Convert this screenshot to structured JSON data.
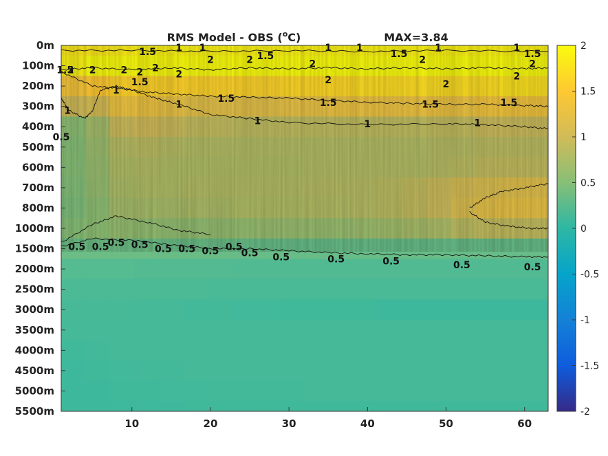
{
  "chart_data": {
    "type": "heatmap",
    "title": "RMS Model - OBS (",
    "title_unit_sup": "o",
    "title_unit_end": "C)",
    "max_label": "MAX=3.84",
    "colormap": "parula",
    "clim": [
      -2,
      2
    ],
    "xlim": [
      1,
      63
    ],
    "x_ticks": [
      10,
      20,
      30,
      40,
      50,
      60
    ],
    "y_ticks": [
      "0m",
      "100m",
      "200m",
      "300m",
      "400m",
      "500m",
      "600m",
      "700m",
      "800m",
      "1000m",
      "1500m",
      "2000m",
      "2500m",
      "3000m",
      "3500m",
      "4000m",
      "4500m",
      "5000m",
      "5500m"
    ],
    "colorbar_ticks": [
      2,
      1.5,
      1,
      0.5,
      0,
      -0.5,
      -1,
      -1.5,
      -2
    ],
    "depth_rows": [
      {
        "level": "0m",
        "values": [
          1.8,
          1.8,
          1.85,
          1.9,
          1.9,
          1.9,
          1.9,
          1.9,
          1.9,
          1.9,
          1.9,
          1.9,
          1.9,
          1.9,
          1.9,
          1.9,
          1.9,
          1.9,
          1.9,
          1.9
        ]
      },
      {
        "level": "100m",
        "values": [
          1.9,
          2.0,
          2.0,
          2.0,
          2.0,
          2.0,
          2.0,
          2.0,
          2.0,
          2.0,
          2.0,
          2.0,
          2.0,
          2.0,
          2.0,
          2.0,
          2.0,
          2.0,
          2.0,
          2.0
        ]
      },
      {
        "level": "200m",
        "values": [
          1.4,
          1.5,
          1.6,
          1.6,
          1.6,
          1.6,
          1.6,
          1.6,
          1.6,
          1.65,
          1.65,
          1.65,
          1.7,
          1.7,
          1.7,
          1.7,
          1.7,
          1.7,
          1.75,
          1.75
        ]
      },
      {
        "level": "300m",
        "values": [
          1.0,
          1.05,
          1.3,
          1.3,
          1.25,
          1.2,
          1.2,
          1.2,
          1.2,
          1.25,
          1.25,
          1.3,
          1.3,
          1.3,
          1.3,
          1.3,
          1.3,
          1.35,
          1.35,
          1.35
        ]
      },
      {
        "level": "400m",
        "values": [
          0.55,
          0.7,
          0.95,
          1.0,
          0.95,
          0.9,
          0.9,
          0.88,
          0.88,
          0.88,
          0.88,
          0.88,
          0.88,
          0.88,
          0.88,
          0.9,
          0.9,
          0.95,
          0.95,
          0.95
        ]
      },
      {
        "level": "500m",
        "values": [
          0.5,
          0.65,
          0.82,
          0.85,
          0.82,
          0.8,
          0.8,
          0.8,
          0.8,
          0.8,
          0.8,
          0.8,
          0.8,
          0.8,
          0.8,
          0.82,
          0.82,
          0.85,
          0.85,
          0.85
        ]
      },
      {
        "level": "600m",
        "values": [
          0.5,
          0.62,
          0.78,
          0.8,
          0.78,
          0.78,
          0.78,
          0.78,
          0.78,
          0.78,
          0.8,
          0.8,
          0.8,
          0.8,
          0.8,
          0.82,
          0.85,
          0.9,
          0.9,
          0.9
        ]
      },
      {
        "level": "700m",
        "values": [
          0.48,
          0.6,
          0.75,
          0.78,
          0.78,
          0.8,
          0.8,
          0.8,
          0.8,
          0.8,
          0.82,
          0.82,
          0.82,
          0.85,
          0.9,
          0.95,
          1.05,
          1.1,
          1.15,
          1.15
        ]
      },
      {
        "level": "800m",
        "values": [
          0.45,
          0.55,
          0.7,
          0.72,
          0.72,
          0.75,
          0.75,
          0.78,
          0.78,
          0.78,
          0.8,
          0.8,
          0.82,
          0.85,
          0.9,
          0.95,
          1.1,
          1.2,
          1.25,
          1.25
        ]
      },
      {
        "level": "1000m",
        "values": [
          0.5,
          0.55,
          0.6,
          0.58,
          0.58,
          0.58,
          0.6,
          0.6,
          0.62,
          0.62,
          0.62,
          0.62,
          0.65,
          0.68,
          0.72,
          0.75,
          0.85,
          0.9,
          0.9,
          0.9
        ]
      },
      {
        "level": "1500m",
        "values": [
          0.35,
          0.35,
          0.35,
          0.35,
          0.33,
          0.33,
          0.33,
          0.32,
          0.32,
          0.32,
          0.32,
          0.32,
          0.32,
          0.32,
          0.32,
          0.32,
          0.32,
          0.32,
          0.32,
          0.32
        ]
      },
      {
        "level": "2000m",
        "values": [
          0.22,
          0.22,
          0.22,
          0.21,
          0.21,
          0.21,
          0.21,
          0.2,
          0.2,
          0.2,
          0.2,
          0.2,
          0.2,
          0.2,
          0.2,
          0.2,
          0.2,
          0.2,
          0.2,
          0.2
        ]
      },
      {
        "level": "2500m",
        "values": [
          0.17,
          0.17,
          0.17,
          0.17,
          0.17,
          0.17,
          0.16,
          0.16,
          0.16,
          0.16,
          0.16,
          0.16,
          0.16,
          0.16,
          0.16,
          0.16,
          0.16,
          0.16,
          0.16,
          0.16
        ]
      },
      {
        "level": "3000m",
        "values": [
          0.14,
          0.14,
          0.14,
          0.13,
          0.13,
          0.12,
          0.12,
          0.11,
          0.11,
          0.1,
          0.1,
          0.1,
          0.1,
          0.09,
          0.09,
          0.09,
          0.09,
          0.09,
          0.09,
          0.09
        ]
      },
      {
        "level": "3500m",
        "values": [
          0.13,
          0.13,
          0.13,
          0.13,
          0.13,
          0.13,
          0.13,
          0.13,
          0.13,
          0.13,
          0.13,
          0.13,
          0.13,
          0.13,
          0.13,
          0.13,
          0.13,
          0.13,
          0.13,
          0.13
        ]
      },
      {
        "level": "4000m",
        "values": [
          0.1,
          0.12,
          0.13,
          0.13,
          0.13,
          0.13,
          0.13,
          0.13,
          0.13,
          0.13,
          0.13,
          0.13,
          0.13,
          0.13,
          0.13,
          0.13,
          0.13,
          0.13,
          0.13,
          0.13
        ]
      },
      {
        "level": "4500m",
        "values": [
          0.09,
          0.1,
          0.11,
          0.12,
          0.12,
          0.13,
          0.13,
          0.13,
          0.13,
          0.13,
          0.13,
          0.13,
          0.13,
          0.13,
          0.13,
          0.13,
          0.13,
          0.13,
          0.13,
          0.13
        ]
      },
      {
        "level": "5000m",
        "values": [
          0.09,
          0.09,
          0.1,
          0.1,
          0.11,
          0.11,
          0.12,
          0.12,
          0.12,
          0.12,
          0.13,
          0.13,
          0.13,
          0.13,
          0.13,
          0.13,
          0.13,
          0.13,
          0.13,
          0.13
        ]
      },
      {
        "level": "5500m",
        "values": [
          0.09,
          0.09,
          0.09,
          0.09,
          0.09,
          0.1,
          0.1,
          0.1,
          0.1,
          0.1,
          0.1,
          0.1,
          0.1,
          0.1,
          0.1,
          0.1,
          0.1,
          0.1,
          0.1,
          0.1
        ]
      }
    ],
    "contours": [
      {
        "level": "2",
        "line": [
          [
            1,
            1.2
          ],
          [
            5,
            1.1
          ],
          [
            10,
            1.2
          ],
          [
            15,
            1.1
          ],
          [
            20,
            1.2
          ],
          [
            25,
            1.1
          ],
          [
            30,
            1.15
          ],
          [
            35,
            1.1
          ],
          [
            40,
            1.15
          ],
          [
            45,
            1.1
          ],
          [
            50,
            1.15
          ],
          [
            55,
            1.1
          ],
          [
            60,
            1.15
          ],
          [
            63,
            1.1
          ]
        ]
      },
      {
        "level": "1.5",
        "line": [
          [
            1,
            0.25
          ],
          [
            10,
            0.25
          ],
          [
            20,
            0.3
          ],
          [
            30,
            0.25
          ],
          [
            40,
            0.3
          ],
          [
            50,
            0.25
          ],
          [
            63,
            0.3
          ]
        ]
      },
      {
        "level": "1.5",
        "line": [
          [
            1,
            1.3
          ],
          [
            5,
            2.0
          ],
          [
            8,
            2.1
          ],
          [
            12,
            2.3
          ],
          [
            16,
            2.4
          ],
          [
            20,
            2.5
          ],
          [
            25,
            2.55
          ],
          [
            30,
            2.6
          ],
          [
            35,
            2.7
          ],
          [
            40,
            2.8
          ],
          [
            45,
            2.85
          ],
          [
            50,
            2.9
          ],
          [
            55,
            2.9
          ],
          [
            60,
            2.95
          ],
          [
            63,
            3.0
          ]
        ]
      },
      {
        "level": "1",
        "line": [
          [
            1,
            2.6
          ],
          [
            2,
            3.2
          ],
          [
            4,
            3.6
          ],
          [
            5,
            3.2
          ],
          [
            6,
            2.2
          ],
          [
            8,
            2.0
          ],
          [
            10,
            2.2
          ],
          [
            13,
            2.6
          ],
          [
            16,
            2.9
          ],
          [
            20,
            3.4
          ],
          [
            25,
            3.6
          ],
          [
            30,
            3.8
          ],
          [
            40,
            3.9
          ],
          [
            50,
            3.85
          ],
          [
            55,
            3.9
          ],
          [
            60,
            4.0
          ],
          [
            63,
            4.1
          ]
        ]
      },
      {
        "level": "0.5",
        "line": [
          [
            1,
            9.9
          ],
          [
            5,
            9.5
          ],
          [
            10,
            9.6
          ],
          [
            15,
            9.8
          ],
          [
            20,
            10.0
          ],
          [
            25,
            10.0
          ],
          [
            30,
            10.1
          ],
          [
            35,
            10.2
          ],
          [
            40,
            10.25
          ],
          [
            45,
            10.3
          ],
          [
            50,
            10.3
          ],
          [
            55,
            10.35
          ],
          [
            60,
            10.4
          ],
          [
            63,
            10.4
          ]
        ]
      },
      {
        "level": "0.5",
        "line": [
          [
            1,
            9.7
          ],
          [
            5,
            8.8
          ],
          [
            8,
            8.4
          ],
          [
            12,
            8.7
          ],
          [
            16,
            9.1
          ],
          [
            20,
            9.3
          ]
        ]
      },
      {
        "level": "1",
        "line": [
          [
            53,
            8.0
          ],
          [
            55,
            7.5
          ],
          [
            57,
            7.2
          ],
          [
            60,
            7.0
          ],
          [
            63,
            6.8
          ]
        ]
      },
      {
        "level": "1",
        "line": [
          [
            53,
            8.2
          ],
          [
            55,
            8.7
          ],
          [
            58,
            8.9
          ],
          [
            61,
            9.0
          ],
          [
            63,
            9.0
          ]
        ]
      }
    ],
    "contour_labels": [
      {
        "text": "1.5",
        "x": 12,
        "y": 0.3
      },
      {
        "text": "1",
        "x": 16,
        "y": 0.1
      },
      {
        "text": "1",
        "x": 19,
        "y": 0.1
      },
      {
        "text": "2",
        "x": 20,
        "y": 0.7
      },
      {
        "text": "2",
        "x": 25,
        "y": 0.7
      },
      {
        "text": "1.5",
        "x": 27,
        "y": 0.5
      },
      {
        "text": "2",
        "x": 33,
        "y": 0.9
      },
      {
        "text": "1",
        "x": 35,
        "y": 0.1
      },
      {
        "text": "2",
        "x": 35,
        "y": 1.7
      },
      {
        "text": "1",
        "x": 39,
        "y": 0.1
      },
      {
        "text": "1.5",
        "x": 44,
        "y": 0.4
      },
      {
        "text": "2",
        "x": 47,
        "y": 0.7
      },
      {
        "text": "1",
        "x": 49,
        "y": 0.1
      },
      {
        "text": "2",
        "x": 50,
        "y": 1.9
      },
      {
        "text": "1",
        "x": 59,
        "y": 0.1
      },
      {
        "text": "1.5",
        "x": 61,
        "y": 0.4
      },
      {
        "text": "2",
        "x": 59,
        "y": 1.5
      },
      {
        "text": "2",
        "x": 61,
        "y": 0.9
      },
      {
        "text": "1.5",
        "x": 1.5,
        "y": 1.2
      },
      {
        "text": "2",
        "x": 2.2,
        "y": 1.2
      },
      {
        "text": "2",
        "x": 5,
        "y": 1.2
      },
      {
        "text": "2",
        "x": 9,
        "y": 1.2
      },
      {
        "text": "2",
        "x": 11,
        "y": 1.3
      },
      {
        "text": "2",
        "x": 13,
        "y": 1.1
      },
      {
        "text": "2",
        "x": 16,
        "y": 1.4
      },
      {
        "text": "1.5",
        "x": 11,
        "y": 1.8
      },
      {
        "text": "1",
        "x": 8,
        "y": 2.2
      },
      {
        "text": "1.5",
        "x": 22,
        "y": 2.6
      },
      {
        "text": "1.5",
        "x": 35,
        "y": 2.8
      },
      {
        "text": "1.5",
        "x": 48,
        "y": 2.9
      },
      {
        "text": "1.5",
        "x": 58,
        "y": 2.8
      },
      {
        "text": "1",
        "x": 16,
        "y": 2.9
      },
      {
        "text": "1",
        "x": 1.8,
        "y": 3.2
      },
      {
        "text": "1",
        "x": 26,
        "y": 3.7
      },
      {
        "text": "1",
        "x": 40,
        "y": 3.85
      },
      {
        "text": "1",
        "x": 54,
        "y": 3.8
      },
      {
        "text": "0.5",
        "x": 1,
        "y": 4.5
      },
      {
        "text": "0.5",
        "x": 3,
        "y": 9.9
      },
      {
        "text": "0.5",
        "x": 6,
        "y": 9.9
      },
      {
        "text": "0.5",
        "x": 8,
        "y": 9.7
      },
      {
        "text": "0.5",
        "x": 11,
        "y": 9.8
      },
      {
        "text": "0.5",
        "x": 14,
        "y": 10.0
      },
      {
        "text": "0.5",
        "x": 17,
        "y": 10.0
      },
      {
        "text": "0.5",
        "x": 20,
        "y": 10.1
      },
      {
        "text": "0.5",
        "x": 23,
        "y": 9.9
      },
      {
        "text": "0.5",
        "x": 25,
        "y": 10.2
      },
      {
        "text": "0.5",
        "x": 29,
        "y": 10.4
      },
      {
        "text": "0.5",
        "x": 36,
        "y": 10.5
      },
      {
        "text": "0.5",
        "x": 43,
        "y": 10.6
      },
      {
        "text": "0.5",
        "x": 52,
        "y": 10.8
      },
      {
        "text": "0.5",
        "x": 61,
        "y": 10.9
      }
    ]
  }
}
